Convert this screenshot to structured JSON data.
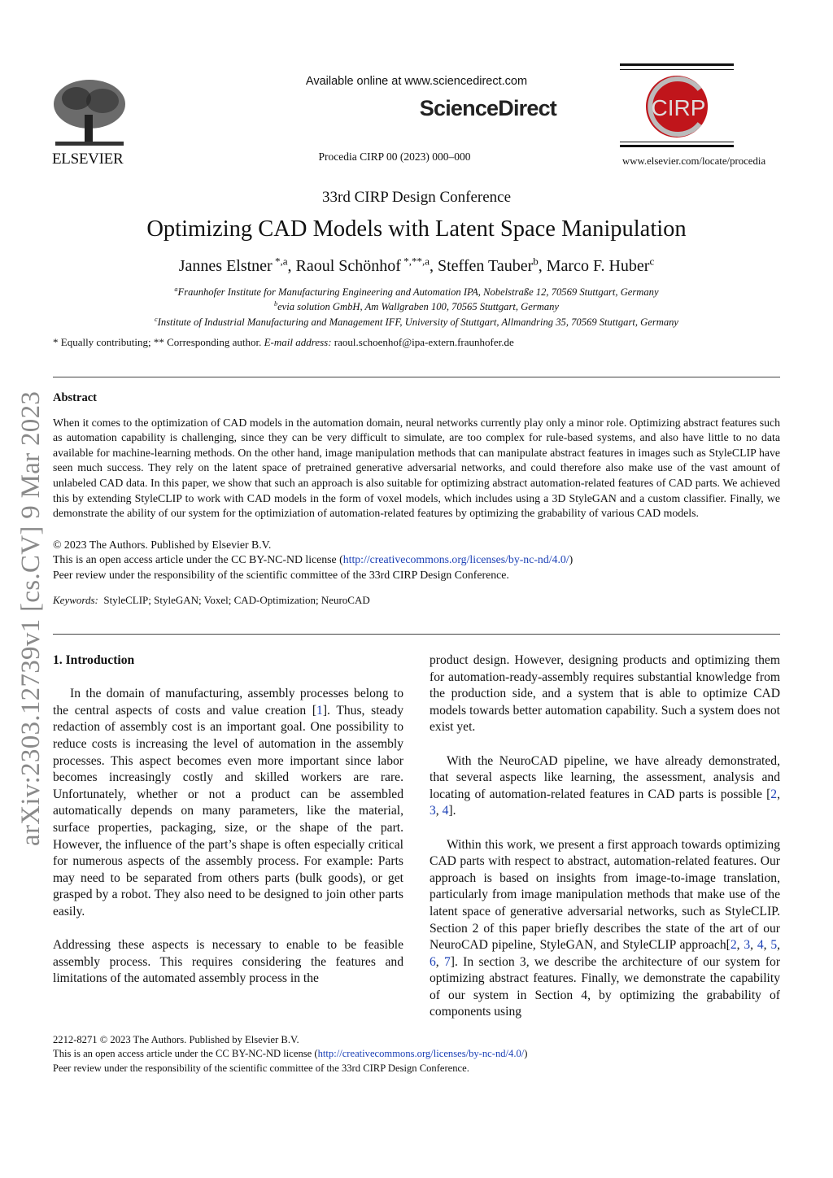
{
  "header": {
    "publisher": "ELSEVIER",
    "available_online": "Available online at www.sciencedirect.com",
    "sciencedirect": "ScienceDirect",
    "journal": "Procedia CIRP 00 (2023) 000–000",
    "cirp_logo_text": "CIRP",
    "journal_url": "www.elsevier.com/locate/procedia"
  },
  "conference": "33rd CIRP Design Conference",
  "title": "Optimizing CAD Models with Latent Space Manipulation",
  "authors": [
    {
      "name": "Jannes Elstner",
      "sup": " *,a"
    },
    {
      "name": "Raoul Schönhof",
      "sup": " *,**,a"
    },
    {
      "name": "Steffen Tauber",
      "sup": "b"
    },
    {
      "name": "Marco F. Huber",
      "sup": "c"
    }
  ],
  "affiliations": [
    {
      "sup": "a",
      "text": "Fraunhofer Institute for Manufacturing Engineering and Automation IPA, Nobelstraße 12, 70569 Stuttgart, Germany"
    },
    {
      "sup": "b",
      "text": "evia solution GmbH, Am Wallgraben 100, 70565 Stuttgart, Germany"
    },
    {
      "sup": "c",
      "text": "Institute of Industrial Manufacturing and Management IFF, University of Stuttgart, Allmandring 35, 70569 Stuttgart, Germany"
    }
  ],
  "correspondence": {
    "note": "* Equally contributing; ** Corresponding author.",
    "email_label": "E-mail address:",
    "email": "raoul.schoenhof@ipa-extern.fraunhofer.de"
  },
  "arxiv_stamp": "arXiv:2303.12739v1  [cs.CV]  9 Mar 2023",
  "abstract": {
    "heading": "Abstract",
    "text": "When it comes to the optimization of CAD models in the automation domain, neural networks currently play only a minor role. Optimizing abstract features such as automation capability is challenging, since they can be very difficult to simulate, are too complex for rule-based systems, and also have little to no data available for machine-learning methods. On the other hand, image manipulation methods that can manipulate abstract features in images such as StyleCLIP have seen much success. They rely on the latent space of pretrained generative adversarial networks, and could therefore also make use of the vast amount of unlabeled CAD data. In this paper, we show that such an approach is also suitable for optimizing abstract automation-related features of CAD parts. We achieved this by extending StyleCLIP to work with CAD models in the form of voxel models, which includes using a 3D StyleGAN and a custom classifier. Finally, we demonstrate the ability of our system for the optimiziation of automation-related features by optimizing the grabability of various CAD models.",
    "copyright": "© 2023 The Authors. Published by Elsevier B.V.",
    "license_prefix": "This is an open access article under the CC BY-NC-ND license (",
    "license_url": "http://creativecommons.org/licenses/by-nc-nd/4.0/",
    "license_suffix": ")",
    "peer_review": "Peer review under the responsibility of the scientific committee of the 33rd CIRP Design Conference.",
    "keywords_label": "Keywords:",
    "keywords": "StyleCLIP; StyleGAN; Voxel; CAD-Optimization; NeuroCAD"
  },
  "introduction": {
    "heading": "1.  Introduction",
    "left_paragraphs": [
      {
        "segments": [
          "In the domain of manufacturing, assembly processes belong to the central aspects of costs and value creation [",
          {
            "ref": "1"
          },
          "]. Thus, steady redaction of assembly cost is an important goal. One possibility to reduce costs is increasing the level of automation in the assembly processes. This aspect becomes even more important since labor becomes increasingly costly and skilled workers are rare. Unfortunately, whether or not a product can be assembled automatically depends on many parameters, like the material, surface properties, packaging, size, or the shape of the part. However, the influence of the part’s shape is often especially critical for numerous aspects of the assembly process. For example: Parts may need to be separated from others parts (bulk goods), or get grasped by a robot. They also need to be designed to join other parts easily."
        ],
        "indent": true
      },
      {
        "segments": [
          "Addressing these aspects is necessary to enable to be feasible assembly process. This requires considering the features and limitations of the automated assembly process in the"
        ],
        "indent": false
      }
    ],
    "right_paragraphs": [
      {
        "segments": [
          "product design. However, designing products and optimizing them for automation-ready-assembly requires substantial knowledge from the production side, and a system that is able to optimize CAD models towards better automation capability. Such a system does not exist yet."
        ],
        "indent": false
      },
      {
        "segments": [
          "With the NeuroCAD pipeline, we have already demonstrated, that several aspects like learning, the assessment, analysis and locating of automation-related features in CAD parts is possible [",
          {
            "ref": "2"
          },
          ", ",
          {
            "ref": "3"
          },
          ", ",
          {
            "ref": "4"
          },
          "]."
        ],
        "indent": true
      },
      {
        "segments": [
          "Within this work, we present a first approach towards optimizing CAD parts with respect to abstract, automation-related features. Our approach is based on insights from image-to-image translation, particularly from image manipulation methods that make use of the latent space of generative adversarial networks, such as StyleCLIP. Section 2 of this paper briefly describes the state of the art of our NeuroCAD pipeline, StyleGAN, and StyleCLIP approach[",
          {
            "ref": "2"
          },
          ", ",
          {
            "ref": "3"
          },
          ", ",
          {
            "ref": "4"
          },
          ", ",
          {
            "ref": "5"
          },
          ", ",
          {
            "ref": "6"
          },
          ", ",
          {
            "ref": "7"
          },
          "]. In section 3, we describe the architecture of our system for optimizing abstract features. Finally, we demonstrate the capability of our system in Section 4, by optimizing the grabability of components using"
        ],
        "indent": true
      }
    ]
  },
  "footer": {
    "issn_copyright": "2212-8271 © 2023 The Authors. Published by Elsevier B.V.",
    "license_prefix": "This is an open access article under the CC BY-NC-ND license (",
    "license_url": "http://creativecommons.org/licenses/by-nc-nd/4.0/",
    "license_suffix": ")",
    "peer_review": "Peer review under the responsibility of the scientific committee of the 33rd CIRP Design Conference."
  },
  "colors": {
    "link": "#1a3fb5",
    "cirp_red": "#c0151b",
    "stamp_gray": "#8a8a8a"
  }
}
